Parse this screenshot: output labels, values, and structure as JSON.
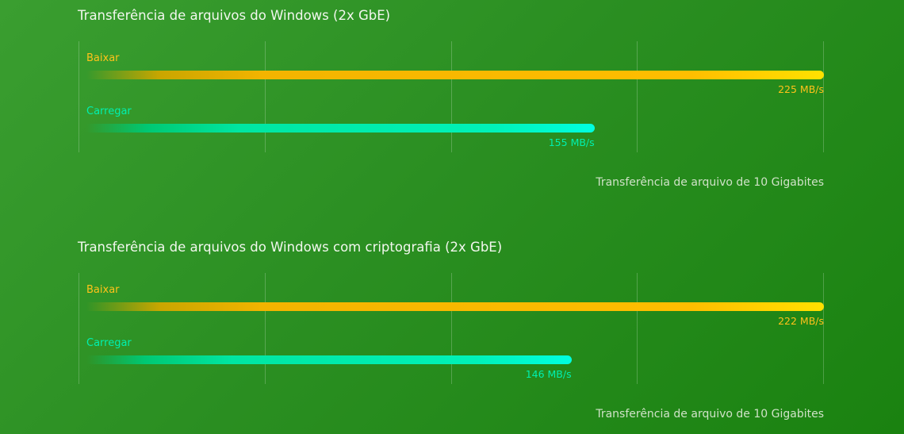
{
  "chart_data": [
    {
      "type": "bar",
      "orientation": "horizontal",
      "title": "Transferência de arquivos do Windows (2x GbE)",
      "series": [
        {
          "name": "Baixar",
          "value": 225,
          "value_label": "225 MB/s",
          "color": "#ffc21a"
        },
        {
          "name": "Carregar",
          "value": 155,
          "value_label": "155 MB/s",
          "color": "#00f0b0"
        }
      ],
      "xlim": [
        0,
        225
      ],
      "grid": true,
      "gridlines": 5,
      "footnote": "Transferência de arquivo de 10 Gigabites"
    },
    {
      "type": "bar",
      "orientation": "horizontal",
      "title": "Transferência de arquivos do Windows com criptografia (2x GbE)",
      "series": [
        {
          "name": "Baixar",
          "value": 222,
          "value_label": "222 MB/s",
          "color": "#ffc21a"
        },
        {
          "name": "Carregar",
          "value": 146,
          "value_label": "146 MB/s",
          "color": "#00f0b0"
        }
      ],
      "xlim": [
        0,
        222
      ],
      "grid": true,
      "gridlines": 5,
      "footnote": "Transferência de arquivo de 10 Gigabites"
    }
  ]
}
